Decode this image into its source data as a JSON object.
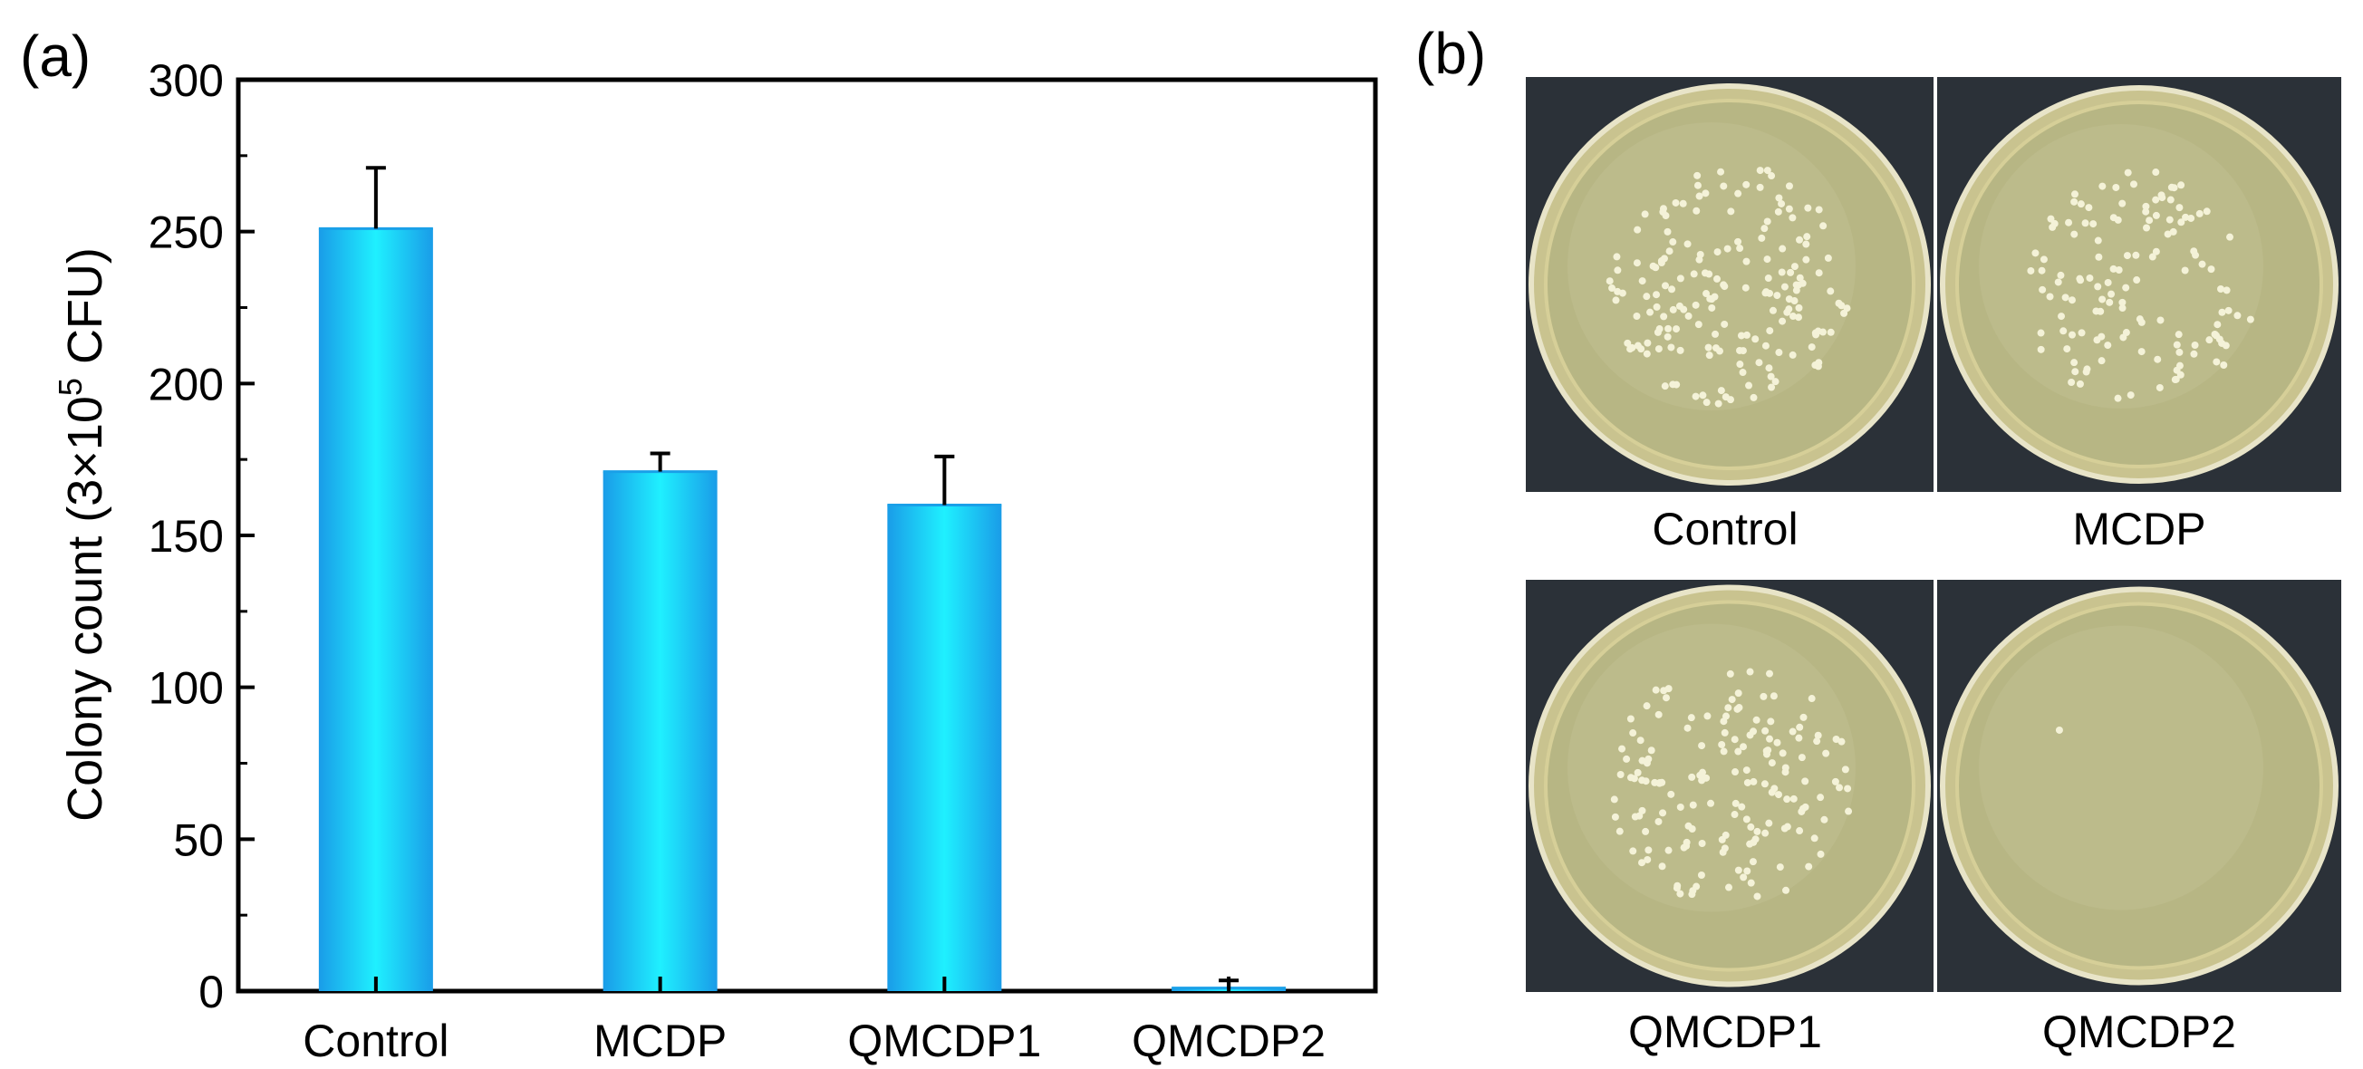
{
  "panel_a_label": "(a)",
  "panel_b_label": "(b)",
  "chart_data": {
    "type": "bar",
    "categories": [
      "Control",
      "MCDP",
      "QMCDP1",
      "QMCDP2"
    ],
    "values": [
      251,
      171,
      160,
      1
    ],
    "errors": [
      20,
      6,
      16,
      2.5
    ],
    "ylabel": "Colony count (3×10⁵ CFU)",
    "ylabel_main": "Colony count (3×10",
    "ylabel_exp": "5",
    "ylabel_tail": " CFU)",
    "ylim": [
      0,
      300
    ],
    "yticks": [
      0,
      50,
      100,
      150,
      200,
      250,
      300
    ],
    "bar_color": "#1fd8f5",
    "bar_color_edge": "#1aa0e8",
    "grid": false
  },
  "plates": [
    {
      "label": "Control",
      "colonies": 180
    },
    {
      "label": "MCDP",
      "colonies": 130
    },
    {
      "label": "QMCDP1",
      "colonies": 160
    },
    {
      "label": "QMCDP2",
      "colonies": 1
    }
  ]
}
